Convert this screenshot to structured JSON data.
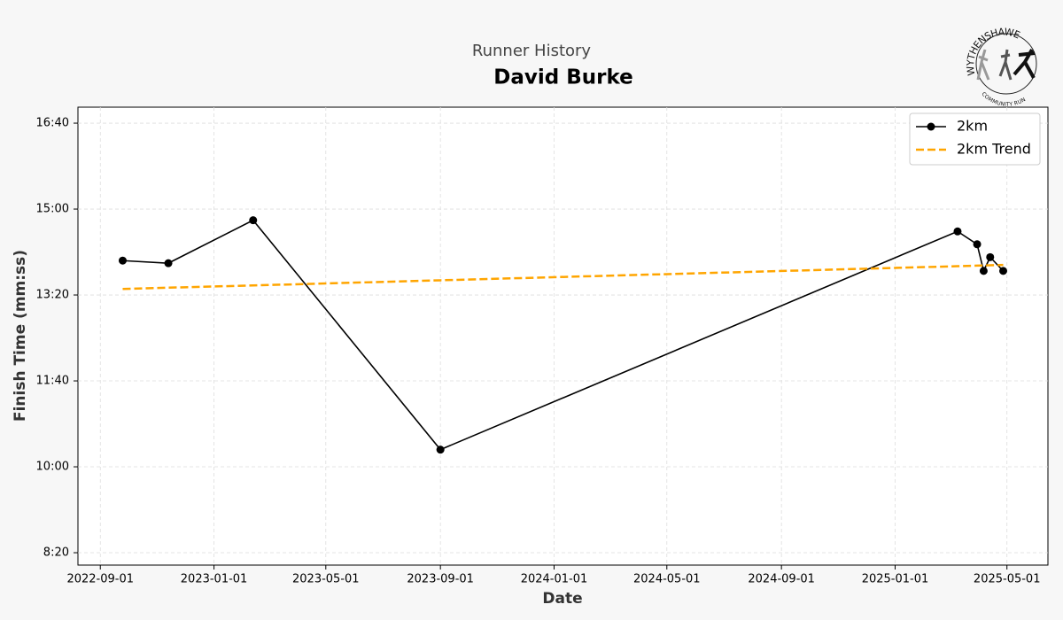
{
  "chart_data": {
    "type": "line",
    "subtitle": "Runner History",
    "title": "David Burke",
    "x_label": "Date",
    "y_label": "Finish Time (mm:ss)",
    "x": [
      "2022-09-25",
      "2022-11-13",
      "2023-02-12",
      "2023-09-01",
      "2025-03-09",
      "2025-03-30",
      "2025-04-06",
      "2025-04-13",
      "2025-04-27"
    ],
    "series": [
      {
        "name": "2km",
        "color": "#000000",
        "style": "solid",
        "marker": true,
        "values": [
          840,
          837,
          887,
          620,
          874,
          859,
          828,
          844,
          828
        ]
      },
      {
        "name": "2km Trend",
        "color": "#ffa500",
        "style": "dashed",
        "marker": false,
        "values": [
          807,
          808.5,
          811.1,
          817.1,
          833.5,
          834.2,
          834.4,
          834.6,
          835
        ]
      }
    ],
    "xlim": [
      "2022-08-08",
      "2025-06-14"
    ],
    "xticks": [
      "2022-09-01",
      "2023-01-01",
      "2023-05-01",
      "2023-09-01",
      "2024-01-01",
      "2024-05-01",
      "2024-09-01",
      "2025-01-01",
      "2025-05-01"
    ],
    "ylim": [
      485.6,
      1018.6
    ],
    "yticks": [
      {
        "value": 500,
        "label": "8:20"
      },
      {
        "value": 600,
        "label": "10:00"
      },
      {
        "value": 700,
        "label": "11:40"
      },
      {
        "value": 800,
        "label": "13:20"
      },
      {
        "value": 900,
        "label": "15:00"
      },
      {
        "value": 1000,
        "label": "16:40"
      }
    ],
    "grid": true,
    "legend": "upper right"
  },
  "logo": {
    "name": "WYTHENSHAWE",
    "tagline": "COMMUNITY RUN"
  }
}
